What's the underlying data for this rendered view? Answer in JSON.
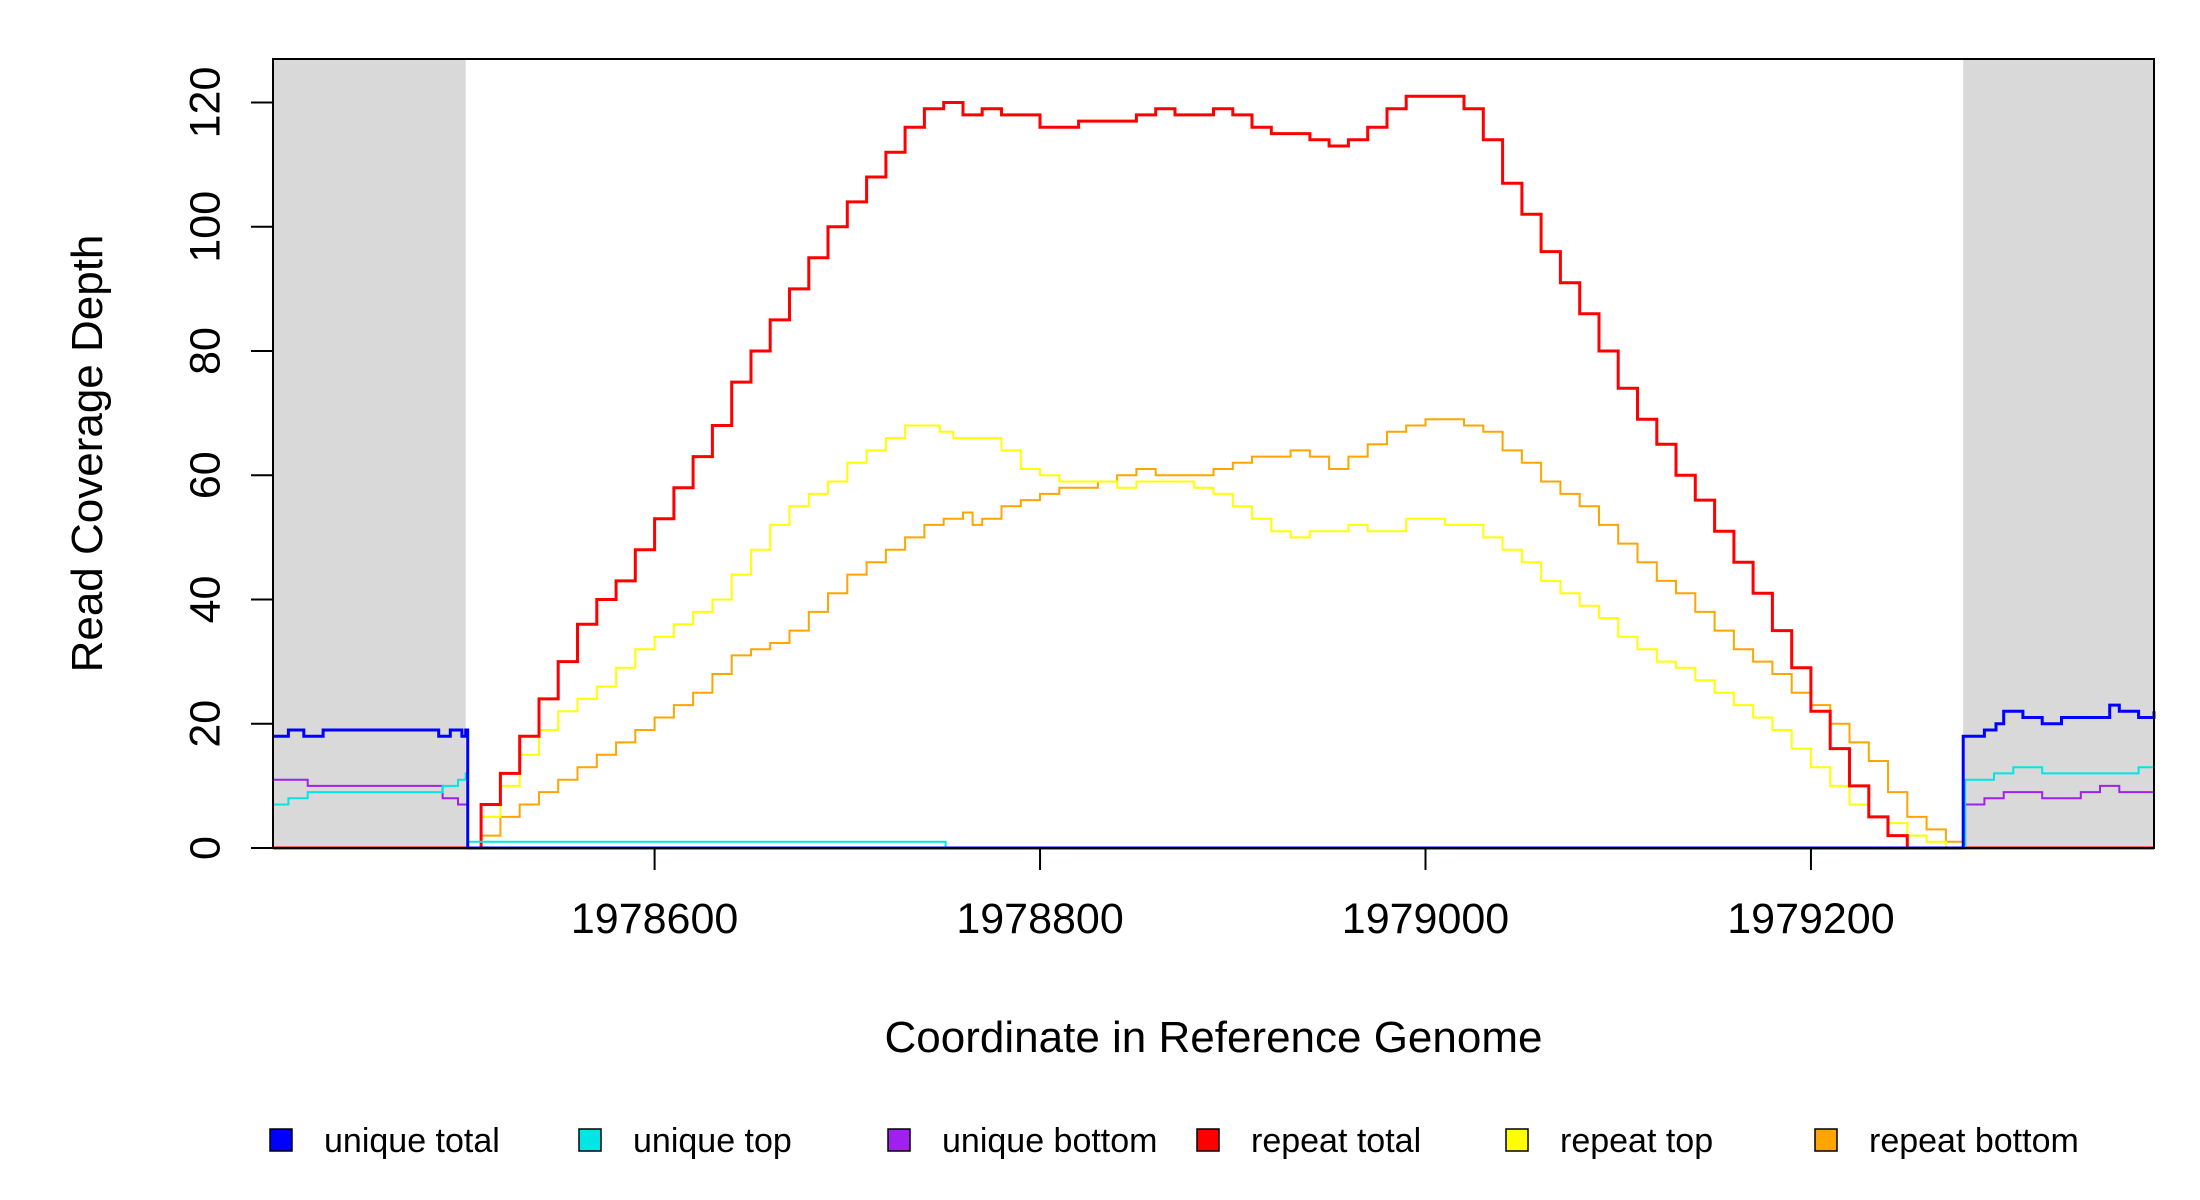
{
  "chart_data": {
    "type": "line",
    "title": "",
    "xlabel": "Coordinate in Reference Genome",
    "ylabel": "Read Coverage Depth",
    "xlim": [
      1978402,
      1979378
    ],
    "ylim": [
      0,
      127
    ],
    "x_ticks": [
      1978600,
      1978800,
      1979000,
      1979200
    ],
    "y_ticks": [
      0,
      20,
      40,
      60,
      80,
      100,
      120
    ],
    "shaded_regions": [
      {
        "from": 1978402,
        "to": 1978502,
        "color": "#d9d9d9"
      },
      {
        "from": 1979279,
        "to": 1979378,
        "color": "#d9d9d9"
      }
    ],
    "legend_position": "bottom",
    "series": [
      {
        "name": "unique total",
        "color": "#0000ff",
        "width": 3,
        "x": [
          1978402,
          1978410,
          1978418,
          1978428,
          1978440,
          1978460,
          1978482,
          1978488,
          1978494,
          1978500,
          1978502,
          1978503,
          1978600,
          1978750,
          1979000,
          1979278,
          1979279,
          1979290,
          1979296,
          1979300,
          1979310,
          1979320,
          1979330,
          1979340,
          1979350,
          1979355,
          1979360,
          1979370,
          1979378
        ],
        "y": [
          18,
          19,
          18,
          19,
          19,
          19,
          19,
          18,
          19,
          18,
          19,
          0,
          0,
          0,
          0,
          0,
          18,
          19,
          20,
          22,
          21,
          20,
          21,
          21,
          21,
          23,
          22,
          21,
          22
        ]
      },
      {
        "name": "unique top",
        "color": "#00e5e5",
        "width": 2,
        "x": [
          1978402,
          1978410,
          1978420,
          1978440,
          1978460,
          1978480,
          1978490,
          1978498,
          1978502,
          1978503,
          1978750,
          1978751,
          1979279,
          1979280,
          1979295,
          1979305,
          1979320,
          1979340,
          1979360,
          1979370,
          1979378
        ],
        "y": [
          7,
          8,
          9,
          9,
          9,
          9,
          10,
          11,
          12,
          1,
          1,
          0,
          0,
          11,
          12,
          13,
          12,
          12,
          12,
          13,
          13
        ]
      },
      {
        "name": "unique bottom",
        "color": "#a020f0",
        "width": 2,
        "x": [
          1978402,
          1978410,
          1978420,
          1978440,
          1978460,
          1978480,
          1978490,
          1978498,
          1978502,
          1978503,
          1979279,
          1979280,
          1979290,
          1979300,
          1979320,
          1979340,
          1979350,
          1979360,
          1979378
        ],
        "y": [
          11,
          11,
          10,
          10,
          10,
          10,
          8,
          7,
          7,
          0,
          0,
          7,
          8,
          9,
          8,
          9,
          10,
          9,
          9
        ]
      },
      {
        "name": "repeat total",
        "color": "#ff0000",
        "width": 3,
        "x": [
          1978402,
          1978502,
          1978510,
          1978520,
          1978530,
          1978540,
          1978550,
          1978560,
          1978570,
          1978580,
          1978590,
          1978600,
          1978610,
          1978620,
          1978630,
          1978640,
          1978650,
          1978660,
          1978670,
          1978680,
          1978690,
          1978700,
          1978710,
          1978720,
          1978730,
          1978740,
          1978750,
          1978760,
          1978770,
          1978780,
          1978790,
          1978800,
          1978810,
          1978820,
          1978830,
          1978840,
          1978850,
          1978860,
          1978870,
          1978880,
          1978890,
          1978900,
          1978910,
          1978920,
          1978930,
          1978940,
          1978950,
          1978960,
          1978970,
          1978980,
          1978990,
          1979000,
          1979010,
          1979020,
          1979030,
          1979040,
          1979050,
          1979060,
          1979070,
          1979080,
          1979090,
          1979100,
          1979110,
          1979120,
          1979130,
          1979140,
          1979150,
          1979160,
          1979170,
          1979180,
          1979190,
          1979200,
          1979210,
          1979220,
          1979230,
          1979240,
          1979250,
          1979260,
          1979270,
          1979279,
          1979378
        ],
        "y": [
          0,
          0,
          7,
          12,
          18,
          24,
          30,
          36,
          40,
          43,
          48,
          53,
          58,
          63,
          68,
          75,
          80,
          85,
          90,
          95,
          100,
          104,
          108,
          112,
          116,
          119,
          120,
          118,
          119,
          118,
          118,
          116,
          116,
          117,
          117,
          117,
          118,
          119,
          118,
          118,
          119,
          118,
          116,
          115,
          115,
          114,
          113,
          114,
          116,
          119,
          121,
          121,
          121,
          119,
          114,
          107,
          102,
          96,
          91,
          86,
          80,
          74,
          69,
          65,
          60,
          56,
          51,
          46,
          41,
          35,
          29,
          22,
          16,
          10,
          5,
          2,
          0,
          0,
          0,
          0,
          0
        ]
      },
      {
        "name": "repeat top",
        "color": "#ffff00",
        "width": 2,
        "x": [
          1978402,
          1978502,
          1978510,
          1978520,
          1978530,
          1978540,
          1978550,
          1978560,
          1978570,
          1978580,
          1978590,
          1978600,
          1978610,
          1978620,
          1978630,
          1978640,
          1978650,
          1978660,
          1978670,
          1978680,
          1978690,
          1978700,
          1978710,
          1978720,
          1978730,
          1978740,
          1978748,
          1978755,
          1978760,
          1978770,
          1978780,
          1978790,
          1978800,
          1978810,
          1978820,
          1978830,
          1978840,
          1978850,
          1978860,
          1978870,
          1978880,
          1978890,
          1978900,
          1978910,
          1978920,
          1978930,
          1978940,
          1978950,
          1978960,
          1978970,
          1978980,
          1978990,
          1979000,
          1979010,
          1979020,
          1979030,
          1979040,
          1979050,
          1979060,
          1979070,
          1979080,
          1979090,
          1979100,
          1979110,
          1979120,
          1979130,
          1979140,
          1979150,
          1979160,
          1979170,
          1979180,
          1979190,
          1979200,
          1979210,
          1979220,
          1979230,
          1979240,
          1979250,
          1979260,
          1979270,
          1979279,
          1979378
        ],
        "y": [
          0,
          0,
          5,
          10,
          15,
          19,
          22,
          24,
          26,
          29,
          32,
          34,
          36,
          38,
          40,
          44,
          48,
          52,
          55,
          57,
          59,
          62,
          64,
          66,
          68,
          68,
          67,
          66,
          66,
          66,
          64,
          61,
          60,
          59,
          59,
          59,
          58,
          59,
          59,
          59,
          58,
          57,
          55,
          53,
          51,
          50,
          51,
          51,
          52,
          51,
          51,
          53,
          53,
          52,
          52,
          50,
          48,
          46,
          43,
          41,
          39,
          37,
          34,
          32,
          30,
          29,
          27,
          25,
          23,
          21,
          19,
          16,
          13,
          10,
          7,
          5,
          4,
          2,
          1,
          0,
          0,
          0
        ]
      },
      {
        "name": "repeat bottom",
        "color": "#ffa500",
        "width": 2,
        "x": [
          1978402,
          1978502,
          1978510,
          1978520,
          1978530,
          1978540,
          1978550,
          1978560,
          1978570,
          1978580,
          1978590,
          1978600,
          1978610,
          1978620,
          1978630,
          1978640,
          1978650,
          1978660,
          1978670,
          1978680,
          1978690,
          1978700,
          1978710,
          1978720,
          1978730,
          1978740,
          1978750,
          1978760,
          1978765,
          1978770,
          1978780,
          1978790,
          1978800,
          1978810,
          1978820,
          1978830,
          1978840,
          1978850,
          1978860,
          1978870,
          1978880,
          1978890,
          1978900,
          1978910,
          1978920,
          1978930,
          1978940,
          1978950,
          1978960,
          1978970,
          1978980,
          1978990,
          1979000,
          1979010,
          1979020,
          1979030,
          1979040,
          1979050,
          1979060,
          1979070,
          1979080,
          1979090,
          1979100,
          1979110,
          1979120,
          1979130,
          1979140,
          1979150,
          1979160,
          1979170,
          1979180,
          1979190,
          1979200,
          1979210,
          1979220,
          1979230,
          1979240,
          1979250,
          1979260,
          1979270,
          1979279,
          1979378
        ],
        "y": [
          0,
          0,
          2,
          5,
          7,
          9,
          11,
          13,
          15,
          17,
          19,
          21,
          23,
          25,
          28,
          31,
          32,
          33,
          35,
          38,
          41,
          44,
          46,
          48,
          50,
          52,
          53,
          54,
          52,
          53,
          55,
          56,
          57,
          58,
          58,
          59,
          60,
          61,
          60,
          60,
          60,
          61,
          62,
          63,
          63,
          64,
          63,
          61,
          63,
          65,
          67,
          68,
          69,
          69,
          68,
          67,
          64,
          62,
          59,
          57,
          55,
          52,
          49,
          46,
          43,
          41,
          38,
          35,
          32,
          30,
          28,
          25,
          23,
          20,
          17,
          14,
          9,
          5,
          3,
          1,
          0,
          0
        ]
      }
    ]
  }
}
